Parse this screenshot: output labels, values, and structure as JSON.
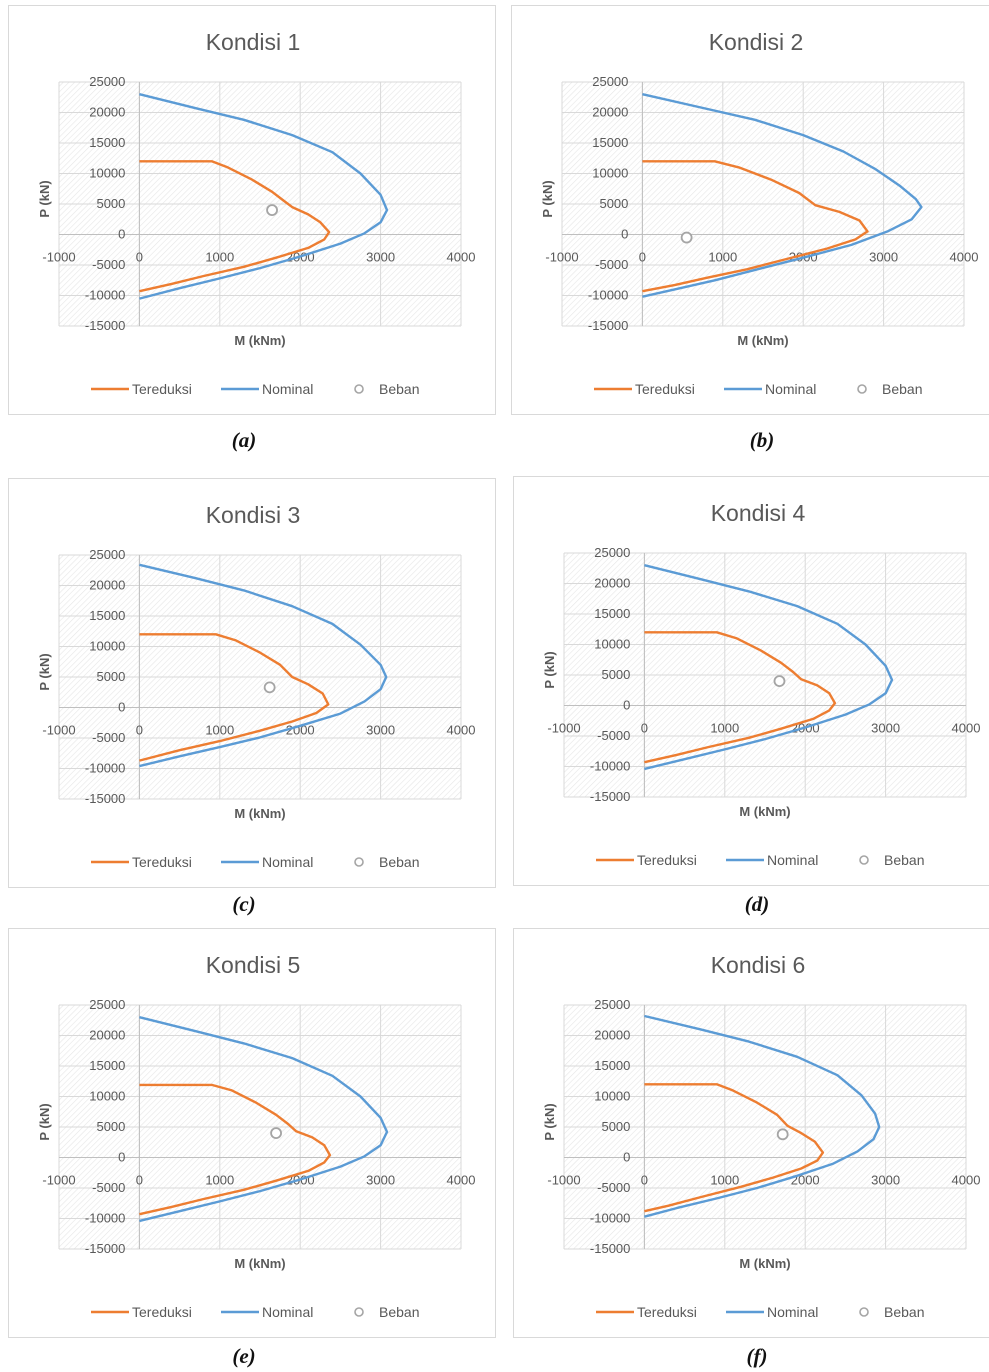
{
  "colors": {
    "tereduksi": "#ED7D31",
    "nominal": "#5B9BD5",
    "beban": "#A5A5A5",
    "grid": "#d9d9d9",
    "text": "#595959"
  },
  "chart_data": [
    {
      "type": "line",
      "title": "Kondisi 1",
      "caption": "(a)",
      "xlabel": "M (kNm)",
      "ylabel": "P (kN)",
      "xlim": [
        -1000,
        4000
      ],
      "ylim": [
        -15000,
        25000
      ],
      "xticks": [
        "-1000",
        "0",
        "1000",
        "2000",
        "3000",
        "4000"
      ],
      "yticks": [
        "25000",
        "20000",
        "15000",
        "10000",
        "5000",
        "0",
        "-5000",
        "-10000",
        "-15000"
      ],
      "legend": [
        "Tereduksi",
        "Nominal",
        "Beban"
      ],
      "series": [
        {
          "name": "Tereduksi",
          "points": [
            [
              0,
              12000
            ],
            [
              900,
              12000
            ],
            [
              1100,
              11000
            ],
            [
              1400,
              9000
            ],
            [
              1650,
              7000
            ],
            [
              1800,
              5500
            ],
            [
              1900,
              4500
            ],
            [
              2100,
              3300
            ],
            [
              2250,
              2000
            ],
            [
              2360,
              400
            ],
            [
              2300,
              -800
            ],
            [
              2100,
              -2200
            ],
            [
              1700,
              -3800
            ],
            [
              1300,
              -5300
            ],
            [
              800,
              -6800
            ],
            [
              400,
              -8100
            ],
            [
              0,
              -9300
            ]
          ]
        },
        {
          "name": "Nominal",
          "points": [
            [
              0,
              23000
            ],
            [
              700,
              20700
            ],
            [
              1300,
              18800
            ],
            [
              1900,
              16300
            ],
            [
              2400,
              13500
            ],
            [
              2750,
              10000
            ],
            [
              3000,
              6500
            ],
            [
              3080,
              4000
            ],
            [
              3000,
              2000
            ],
            [
              2800,
              200
            ],
            [
              2500,
              -1500
            ],
            [
              2000,
              -3600
            ],
            [
              1500,
              -5500
            ],
            [
              1000,
              -7200
            ],
            [
              500,
              -8800
            ],
            [
              0,
              -10500
            ]
          ]
        },
        {
          "name": "Beban",
          "points": [
            [
              1650,
              4000
            ]
          ]
        }
      ]
    },
    {
      "type": "line",
      "title": "Kondisi 2",
      "caption": "(b)",
      "xlabel": "M (kNm)",
      "ylabel": "P (kN)",
      "xlim": [
        -1000,
        4000
      ],
      "ylim": [
        -15000,
        25000
      ],
      "xticks": [
        "-1000",
        "0",
        "1000",
        "2000",
        "3000",
        "4000"
      ],
      "yticks": [
        "25000",
        "20000",
        "15000",
        "10000",
        "5000",
        "0",
        "-5000",
        "-10000",
        "-15000"
      ],
      "legend": [
        "Tereduksi",
        "Nominal",
        "Beban"
      ],
      "series": [
        {
          "name": "Tereduksi",
          "points": [
            [
              0,
              12000
            ],
            [
              900,
              12000
            ],
            [
              1200,
              11000
            ],
            [
              1600,
              9000
            ],
            [
              1950,
              6800
            ],
            [
              2150,
              4800
            ],
            [
              2450,
              3700
            ],
            [
              2700,
              2300
            ],
            [
              2800,
              500
            ],
            [
              2650,
              -800
            ],
            [
              2300,
              -2300
            ],
            [
              1800,
              -4000
            ],
            [
              1300,
              -5700
            ],
            [
              800,
              -7100
            ],
            [
              400,
              -8300
            ],
            [
              0,
              -9300
            ]
          ]
        },
        {
          "name": "Nominal",
          "points": [
            [
              0,
              23000
            ],
            [
              700,
              20900
            ],
            [
              1400,
              18800
            ],
            [
              2000,
              16300
            ],
            [
              2500,
              13600
            ],
            [
              2900,
              10700
            ],
            [
              3200,
              8000
            ],
            [
              3400,
              5800
            ],
            [
              3470,
              4500
            ],
            [
              3350,
              2500
            ],
            [
              3050,
              500
            ],
            [
              2600,
              -1700
            ],
            [
              2000,
              -3800
            ],
            [
              1400,
              -5800
            ],
            [
              900,
              -7500
            ],
            [
              400,
              -9000
            ],
            [
              0,
              -10200
            ]
          ]
        },
        {
          "name": "Beban",
          "points": [
            [
              550,
              -500
            ]
          ]
        }
      ]
    },
    {
      "type": "line",
      "title": "Kondisi 3",
      "caption": "(c)",
      "xlabel": "M (kNm)",
      "ylabel": "P (kN)",
      "xlim": [
        -1000,
        4000
      ],
      "ylim": [
        -15000,
        25000
      ],
      "xticks": [
        "-1000",
        "0",
        "1000",
        "2000",
        "3000",
        "4000"
      ],
      "yticks": [
        "25000",
        "20000",
        "15000",
        "10000",
        "5000",
        "0",
        "-5000",
        "-10000",
        "-15000"
      ],
      "legend": [
        "Tereduksi",
        "Nominal",
        "Beban"
      ],
      "series": [
        {
          "name": "Tereduksi",
          "points": [
            [
              0,
              12000
            ],
            [
              950,
              12000
            ],
            [
              1200,
              11000
            ],
            [
              1500,
              9000
            ],
            [
              1750,
              7000
            ],
            [
              1900,
              5000
            ],
            [
              2100,
              3800
            ],
            [
              2280,
              2300
            ],
            [
              2350,
              500
            ],
            [
              2200,
              -900
            ],
            [
              1900,
              -2300
            ],
            [
              1500,
              -3800
            ],
            [
              1000,
              -5500
            ],
            [
              500,
              -7000
            ],
            [
              0,
              -8700
            ]
          ]
        },
        {
          "name": "Nominal",
          "points": [
            [
              0,
              23400
            ],
            [
              700,
              21200
            ],
            [
              1300,
              19200
            ],
            [
              1900,
              16600
            ],
            [
              2400,
              13700
            ],
            [
              2750,
              10300
            ],
            [
              3000,
              7000
            ],
            [
              3070,
              5000
            ],
            [
              3000,
              3000
            ],
            [
              2800,
              1000
            ],
            [
              2500,
              -1000
            ],
            [
              2000,
              -3000
            ],
            [
              1500,
              -4900
            ],
            [
              1000,
              -6500
            ],
            [
              500,
              -8000
            ],
            [
              0,
              -9600
            ]
          ]
        },
        {
          "name": "Beban",
          "points": [
            [
              1620,
              3300
            ]
          ]
        }
      ]
    },
    {
      "type": "line",
      "title": "Kondisi 4",
      "caption": "(d)",
      "xlabel": "M (kNm)",
      "ylabel": "P (kN)",
      "xlim": [
        -1000,
        4000
      ],
      "ylim": [
        -15000,
        25000
      ],
      "xticks": [
        "-1000",
        "0",
        "1000",
        "2000",
        "3000",
        "4000"
      ],
      "yticks": [
        "25000",
        "20000",
        "15000",
        "10000",
        "5000",
        "0",
        "-5000",
        "-10000",
        "-15000"
      ],
      "legend": [
        "Tereduksi",
        "Nominal",
        "Beban"
      ],
      "series": [
        {
          "name": "Tereduksi",
          "points": [
            [
              0,
              12000
            ],
            [
              900,
              12000
            ],
            [
              1150,
              11000
            ],
            [
              1450,
              9000
            ],
            [
              1700,
              7000
            ],
            [
              1850,
              5500
            ],
            [
              1950,
              4300
            ],
            [
              2150,
              3300
            ],
            [
              2300,
              2000
            ],
            [
              2370,
              400
            ],
            [
              2300,
              -800
            ],
            [
              2100,
              -2200
            ],
            [
              1700,
              -3800
            ],
            [
              1300,
              -5300
            ],
            [
              800,
              -6800
            ],
            [
              400,
              -8100
            ],
            [
              0,
              -9300
            ]
          ]
        },
        {
          "name": "Nominal",
          "points": [
            [
              0,
              23000
            ],
            [
              700,
              20700
            ],
            [
              1300,
              18700
            ],
            [
              1900,
              16300
            ],
            [
              2400,
              13400
            ],
            [
              2750,
              10000
            ],
            [
              3000,
              6500
            ],
            [
              3080,
              4200
            ],
            [
              3000,
              2000
            ],
            [
              2800,
              200
            ],
            [
              2500,
              -1500
            ],
            [
              2000,
              -3600
            ],
            [
              1500,
              -5500
            ],
            [
              1000,
              -7200
            ],
            [
              500,
              -8800
            ],
            [
              0,
              -10400
            ]
          ]
        },
        {
          "name": "Beban",
          "points": [
            [
              1680,
              4000
            ]
          ]
        }
      ]
    },
    {
      "type": "line",
      "title": "Kondisi 5",
      "caption": "(e)",
      "xlabel": "M (kNm)",
      "ylabel": "P (kN)",
      "xlim": [
        -1000,
        4000
      ],
      "ylim": [
        -15000,
        25000
      ],
      "xticks": [
        "-1000",
        "0",
        "1000",
        "2000",
        "3000",
        "4000"
      ],
      "yticks": [
        "25000",
        "20000",
        "15000",
        "10000",
        "5000",
        "0",
        "-5000",
        "-10000",
        "-15000"
      ],
      "legend": [
        "Tereduksi",
        "Nominal",
        "Beban"
      ],
      "series": [
        {
          "name": "Tereduksi",
          "points": [
            [
              0,
              11900
            ],
            [
              900,
              11900
            ],
            [
              1150,
              11000
            ],
            [
              1450,
              9000
            ],
            [
              1700,
              7000
            ],
            [
              1850,
              5500
            ],
            [
              1950,
              4300
            ],
            [
              2150,
              3300
            ],
            [
              2300,
              2000
            ],
            [
              2370,
              400
            ],
            [
              2300,
              -800
            ],
            [
              2100,
              -2200
            ],
            [
              1700,
              -3800
            ],
            [
              1300,
              -5300
            ],
            [
              800,
              -6800
            ],
            [
              400,
              -8100
            ],
            [
              0,
              -9300
            ]
          ]
        },
        {
          "name": "Nominal",
          "points": [
            [
              0,
              23000
            ],
            [
              700,
              20700
            ],
            [
              1300,
              18700
            ],
            [
              1900,
              16300
            ],
            [
              2400,
              13400
            ],
            [
              2750,
              10000
            ],
            [
              3000,
              6500
            ],
            [
              3080,
              4200
            ],
            [
              3000,
              2000
            ],
            [
              2800,
              200
            ],
            [
              2500,
              -1500
            ],
            [
              2000,
              -3600
            ],
            [
              1500,
              -5500
            ],
            [
              1000,
              -7200
            ],
            [
              500,
              -8800
            ],
            [
              0,
              -10400
            ]
          ]
        },
        {
          "name": "Beban",
          "points": [
            [
              1700,
              4000
            ]
          ]
        }
      ]
    },
    {
      "type": "line",
      "title": "Kondisi 6",
      "caption": "(f)",
      "xlabel": "M (kNm)",
      "ylabel": "P (kN)",
      "xlim": [
        -1000,
        4000
      ],
      "ylim": [
        -15000,
        25000
      ],
      "xticks": [
        "-1000",
        "0",
        "1000",
        "2000",
        "3000",
        "4000"
      ],
      "yticks": [
        "25000",
        "20000",
        "15000",
        "10000",
        "5000",
        "0",
        "-5000",
        "-10000",
        "-15000"
      ],
      "legend": [
        "Tereduksi",
        "Nominal",
        "Beban"
      ],
      "series": [
        {
          "name": "Tereduksi",
          "points": [
            [
              0,
              12000
            ],
            [
              900,
              12000
            ],
            [
              1100,
              11000
            ],
            [
              1400,
              9000
            ],
            [
              1650,
              7000
            ],
            [
              1780,
              5200
            ],
            [
              1950,
              4000
            ],
            [
              2120,
              2600
            ],
            [
              2220,
              800
            ],
            [
              2150,
              -500
            ],
            [
              1950,
              -1800
            ],
            [
              1600,
              -3300
            ],
            [
              1200,
              -4800
            ],
            [
              700,
              -6500
            ],
            [
              300,
              -7900
            ],
            [
              0,
              -8800
            ]
          ]
        },
        {
          "name": "Nominal",
          "points": [
            [
              0,
              23200
            ],
            [
              700,
              21000
            ],
            [
              1300,
              19000
            ],
            [
              1900,
              16500
            ],
            [
              2400,
              13500
            ],
            [
              2700,
              10200
            ],
            [
              2870,
              7200
            ],
            [
              2920,
              5000
            ],
            [
              2850,
              3000
            ],
            [
              2650,
              1000
            ],
            [
              2350,
              -1000
            ],
            [
              1900,
              -3000
            ],
            [
              1400,
              -5000
            ],
            [
              900,
              -6700
            ],
            [
              400,
              -8300
            ],
            [
              0,
              -9700
            ]
          ]
        },
        {
          "name": "Beban",
          "points": [
            [
              1720,
              3800
            ]
          ]
        }
      ]
    }
  ]
}
